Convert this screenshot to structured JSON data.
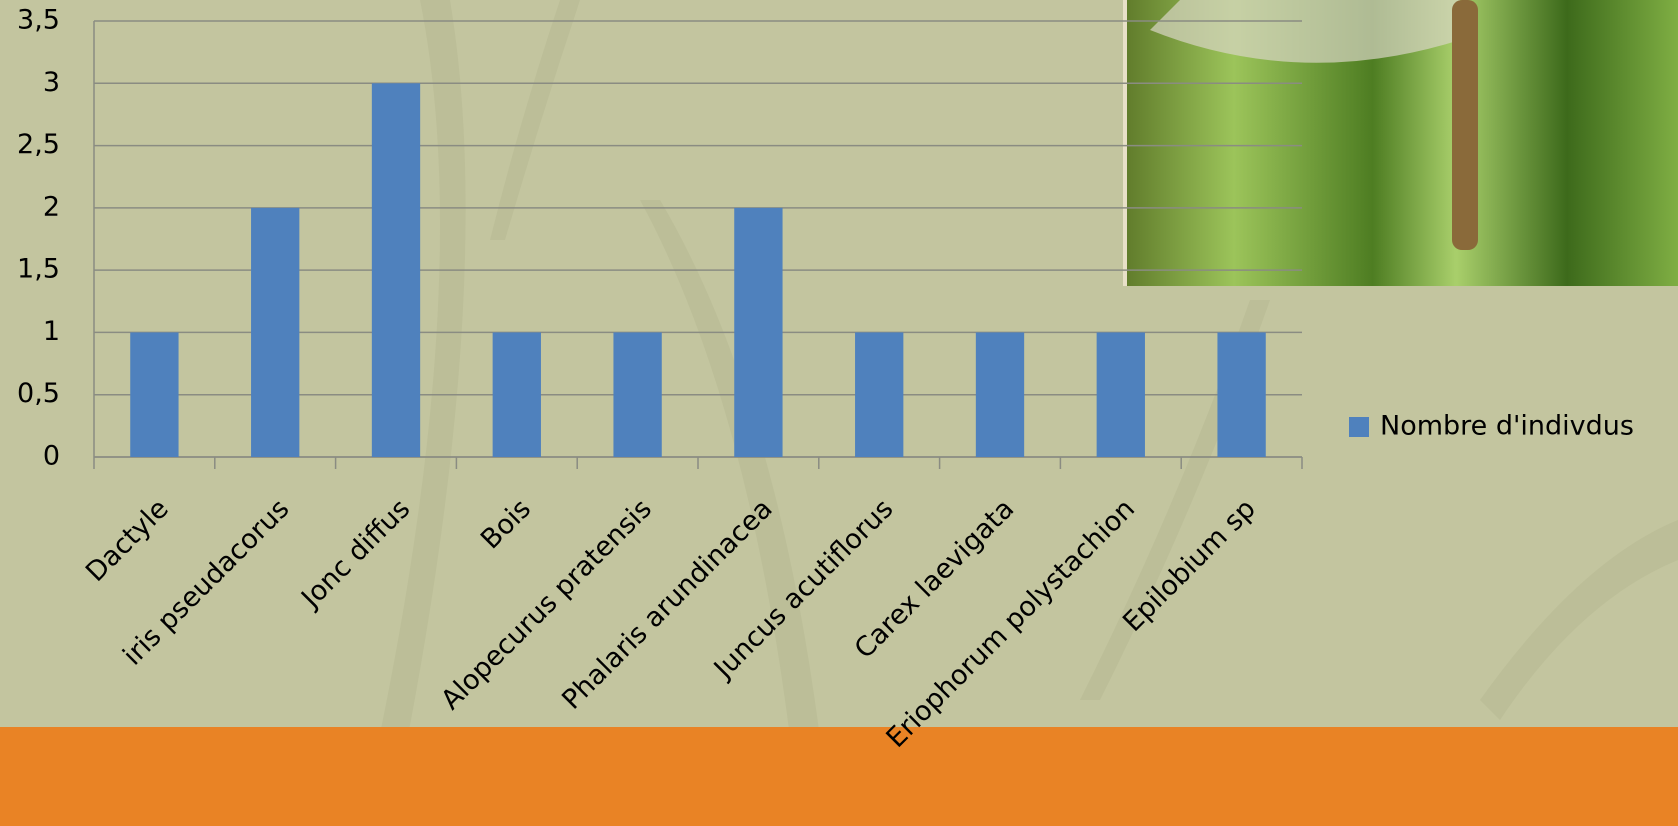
{
  "chart_data": {
    "type": "bar",
    "categories": [
      "Dactyle",
      "iris pseudacorus",
      "Jonc diffus",
      "Bois",
      "Alopecurus pratensis",
      "Phalaris arundinacea",
      "Juncus acutiflorus",
      "Carex laevigata",
      "Eriophorum polystachion",
      "Epilobium sp"
    ],
    "series": [
      {
        "name": "Nombre d'indivdus",
        "color": "#4f81bd",
        "values": [
          1,
          2,
          3,
          1,
          1,
          2,
          1,
          1,
          1,
          1
        ]
      }
    ],
    "ylim": [
      0,
      3.5
    ],
    "yticks": [
      0,
      {
        "value": 0.5,
        "label": "0,5"
      },
      1,
      {
        "value": 1.5,
        "label": "1,5"
      },
      2,
      {
        "value": 2.5,
        "label": "2,5"
      },
      3,
      {
        "value": 3.5,
        "label": "3,5"
      }
    ],
    "grid": true,
    "legend": "right"
  }
}
